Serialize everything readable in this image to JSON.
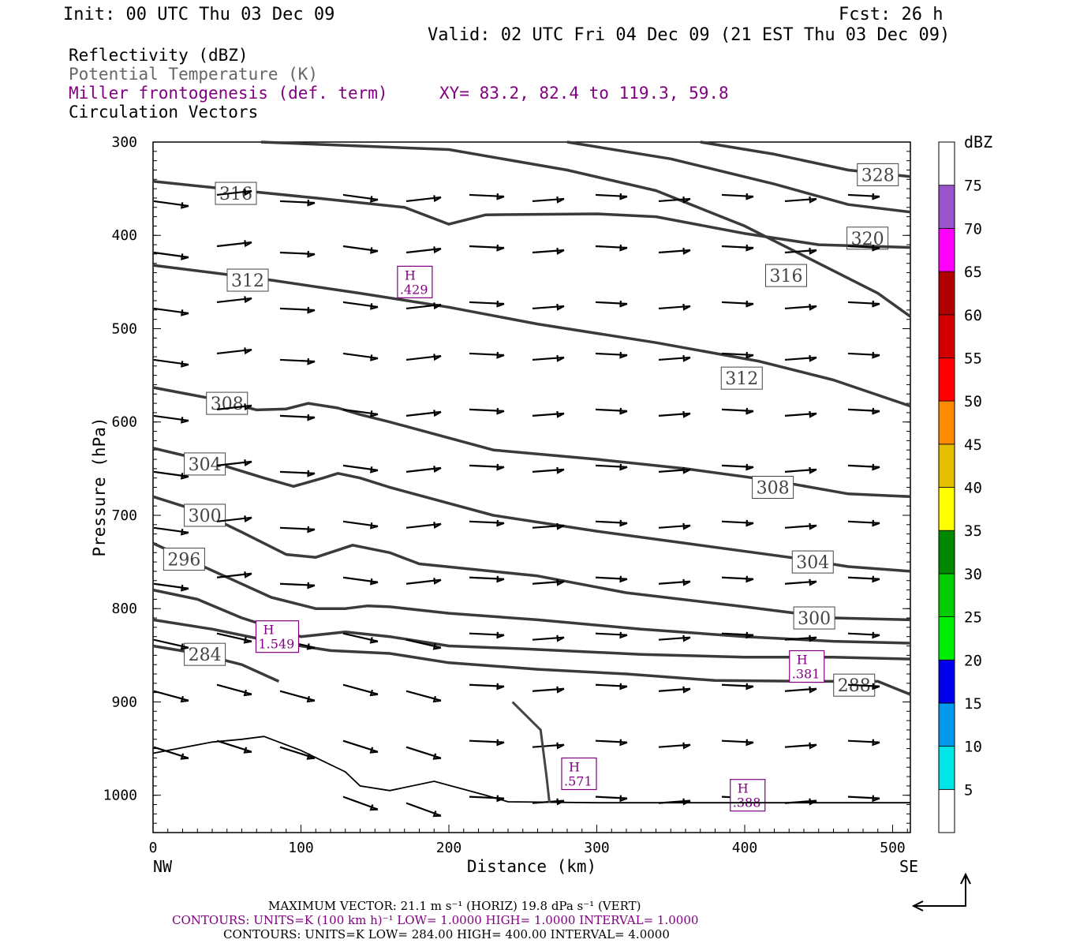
{
  "header": {
    "init": "Init: 00 UTC Thu 03 Dec 09",
    "fcst": "Fcst:   26 h",
    "valid": "Valid: 02 UTC Fri 04 Dec 09 (21 EST Thu 03 Dec 09)"
  },
  "legend": {
    "reflectivity": "Reflectivity (dBZ)",
    "theta": "Potential Temperature (K)",
    "miller": "Miller frontogenesis (def. term)",
    "xy": "XY=  83.2, 82.4 to 119.3, 59.8",
    "circulation": "Circulation Vectors"
  },
  "colors": {
    "miller": "#800080",
    "theta_line": "#3a3a3a",
    "vector": "#000000"
  },
  "footer": {
    "max_vector": "MAXIMUM VECTOR:  21.1 m s⁻¹ (HORIZ)          19.8 dPa s⁻¹ (VERT)",
    "contours1": "CONTOURS:  UNITS=K (100 km h)⁻¹  LOW=  1.0000       HIGH=  1.0000       INTERVAL=   1.0000",
    "contours2": "CONTOURS:  UNITS=K  LOW=  284.00        HIGH=  400.00        INTERVAL=    4.0000"
  },
  "chart_data": {
    "type": "cross-section",
    "xlabel": "Distance (km)",
    "ylabel": "Pressure (hPa)",
    "x_left_label": "NW",
    "x_right_label": "SE",
    "xlim": [
      0,
      512
    ],
    "ylim": [
      300,
      1040
    ],
    "x_ticks": [
      0,
      100,
      200,
      300,
      400,
      500
    ],
    "y_ticks": [
      300,
      400,
      500,
      600,
      700,
      800,
      900,
      1000
    ],
    "colorbar": {
      "unit": "dBZ",
      "levels": [
        5,
        10,
        15,
        20,
        25,
        30,
        35,
        40,
        45,
        50,
        55,
        60,
        65,
        70,
        75
      ],
      "colors": [
        "#ffffff",
        "#00e5e5",
        "#0099ee",
        "#0000ee",
        "#00ee00",
        "#00cc00",
        "#008800",
        "#ffff00",
        "#e5bf00",
        "#ff8c00",
        "#ff0000",
        "#d40000",
        "#b00000",
        "#ff00ff",
        "#9955cc",
        "#ffffff"
      ]
    },
    "theta_contours": [
      {
        "label": "328",
        "label_at": [
          490,
          335
        ],
        "points": [
          [
            370,
            300
          ],
          [
            420,
            313
          ],
          [
            470,
            330
          ],
          [
            512,
            337
          ]
        ]
      },
      {
        "label": "320",
        "label_at": [
          483,
          403
        ],
        "points": [
          [
            280,
            300
          ],
          [
            350,
            318
          ],
          [
            420,
            345
          ],
          [
            470,
            367
          ],
          [
            512,
            375
          ]
        ]
      },
      {
        "label": "316",
        "label_at": [
          428,
          443
        ],
        "points": [
          [
            73,
            300
          ],
          [
            200,
            308
          ],
          [
            280,
            330
          ],
          [
            340,
            352
          ],
          [
            400,
            390
          ],
          [
            450,
            430
          ],
          [
            490,
            462
          ],
          [
            512,
            487
          ]
        ]
      },
      {
        "label": "316",
        "label_at": [
          56,
          355
        ],
        "points": [
          [
            0,
            342
          ],
          [
            60,
            352
          ],
          [
            110,
            360
          ],
          [
            170,
            370
          ],
          [
            200,
            388
          ],
          [
            225,
            378
          ],
          [
            300,
            377
          ],
          [
            340,
            380
          ],
          [
            400,
            398
          ],
          [
            450,
            410
          ],
          [
            512,
            413
          ]
        ]
      },
      {
        "label": "312",
        "label_at": [
          64,
          448
        ],
        "points": [
          [
            0,
            432
          ],
          [
            40,
            440
          ],
          [
            80,
            448
          ],
          [
            140,
            462
          ],
          [
            200,
            477
          ],
          [
            260,
            495
          ],
          [
            340,
            515
          ],
          [
            410,
            535
          ],
          [
            460,
            555
          ],
          [
            512,
            583
          ]
        ]
      },
      {
        "label": "312",
        "label_at": [
          398,
          553
        ],
        "points": []
      },
      {
        "label": "308",
        "label_at": [
          50,
          580
        ],
        "points": [
          [
            0,
            563
          ],
          [
            40,
            575
          ],
          [
            70,
            587
          ],
          [
            90,
            586
          ],
          [
            105,
            580
          ],
          [
            125,
            585
          ],
          [
            140,
            592
          ],
          [
            160,
            600
          ],
          [
            230,
            630
          ],
          [
            300,
            640
          ],
          [
            360,
            650
          ],
          [
            420,
            663
          ],
          [
            470,
            677
          ],
          [
            512,
            680
          ]
        ]
      },
      {
        "label": "308",
        "label_at": [
          419,
          670
        ],
        "points": []
      },
      {
        "label": "304",
        "label_at": [
          35,
          645
        ],
        "points": [
          [
            0,
            628
          ],
          [
            40,
            643
          ],
          [
            75,
            660
          ],
          [
            95,
            669
          ],
          [
            115,
            660
          ],
          [
            125,
            655
          ],
          [
            140,
            660
          ],
          [
            160,
            670
          ],
          [
            230,
            700
          ],
          [
            300,
            717
          ],
          [
            360,
            730
          ],
          [
            430,
            745
          ],
          [
            470,
            755
          ],
          [
            512,
            760
          ]
        ]
      },
      {
        "label": "304",
        "label_at": [
          446,
          750
        ],
        "points": []
      },
      {
        "label": "300",
        "label_at": [
          35,
          700
        ],
        "points": [
          [
            0,
            680
          ],
          [
            30,
            695
          ],
          [
            60,
            718
          ],
          [
            90,
            742
          ],
          [
            110,
            745
          ],
          [
            135,
            732
          ],
          [
            160,
            740
          ],
          [
            180,
            752
          ],
          [
            260,
            765
          ],
          [
            320,
            783
          ],
          [
            400,
            798
          ],
          [
            460,
            810
          ],
          [
            512,
            812
          ]
        ]
      },
      {
        "label": "300",
        "label_at": [
          447,
          810
        ],
        "points": []
      },
      {
        "label": "296",
        "label_at": [
          21,
          747
        ],
        "points": [
          [
            0,
            730
          ],
          [
            30,
            752
          ],
          [
            55,
            770
          ],
          [
            80,
            788
          ],
          [
            110,
            800
          ],
          [
            130,
            800
          ],
          [
            145,
            797
          ],
          [
            160,
            798
          ],
          [
            200,
            805
          ],
          [
            260,
            812
          ],
          [
            330,
            822
          ],
          [
            400,
            830
          ],
          [
            460,
            835
          ],
          [
            512,
            837
          ]
        ]
      },
      {
        "label": "",
        "label_at": null,
        "points": [
          [
            0,
            780
          ],
          [
            30,
            790
          ],
          [
            60,
            810
          ],
          [
            100,
            830
          ],
          [
            130,
            825
          ],
          [
            160,
            830
          ],
          [
            200,
            840
          ],
          [
            250,
            843
          ],
          [
            330,
            849
          ],
          [
            400,
            852
          ],
          [
            460,
            852
          ],
          [
            512,
            854
          ]
        ]
      },
      {
        "label": "288",
        "label_at": [
          474,
          882
        ],
        "points": [
          [
            0,
            812
          ],
          [
            40,
            822
          ],
          [
            80,
            835
          ],
          [
            120,
            845
          ],
          [
            160,
            848
          ],
          [
            200,
            858
          ],
          [
            260,
            865
          ],
          [
            320,
            870
          ],
          [
            380,
            877
          ],
          [
            450,
            878
          ],
          [
            490,
            878
          ],
          [
            512,
            892
          ]
        ]
      },
      {
        "label": "284",
        "label_at": [
          35,
          849
        ],
        "points": [
          [
            0,
            840
          ],
          [
            30,
            848
          ],
          [
            60,
            860
          ],
          [
            85,
            878
          ]
        ]
      }
    ],
    "frontogenesis_maxima": [
      {
        "label": "H",
        "value": ".429",
        "at": [
          177,
          450
        ]
      },
      {
        "label": "H",
        "value": "1.549",
        "at": [
          84,
          830
        ]
      },
      {
        "label": "H",
        "value": ".381",
        "at": [
          442,
          862
        ]
      },
      {
        "label": "H",
        "value": ".571",
        "at": [
          288,
          977
        ]
      },
      {
        "label": "H",
        "value": ".388",
        "at": [
          402,
          1000
        ]
      }
    ]
  }
}
